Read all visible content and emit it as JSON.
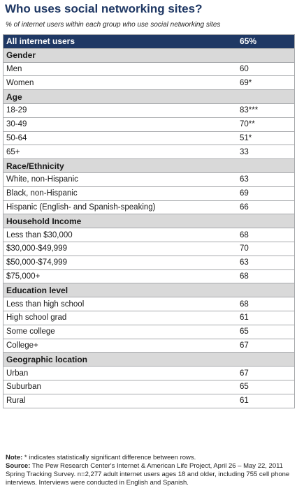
{
  "title": "Who uses social networking sites?",
  "subtitle": "% of internet users within each group who use social networking sites",
  "chart_data": {
    "type": "table",
    "title": "Who uses social networking sites?",
    "subtitle": "% of internet users within each group who use social networking sites",
    "total": {
      "label": "All internet users",
      "value": "65%"
    },
    "groups": [
      {
        "name": "Gender",
        "rows": [
          {
            "label": "Men",
            "value": "60"
          },
          {
            "label": "Women",
            "value": "69*"
          }
        ]
      },
      {
        "name": "Age",
        "rows": [
          {
            "label": "18-29",
            "value": "83***"
          },
          {
            "label": "30-49",
            "value": "70**"
          },
          {
            "label": "50-64",
            "value": "51*"
          },
          {
            "label": "65+",
            "value": "33"
          }
        ]
      },
      {
        "name": "Race/Ethnicity",
        "rows": [
          {
            "label": "White, non-Hispanic",
            "value": "63"
          },
          {
            "label": "Black, non-Hispanic",
            "value": "69"
          },
          {
            "label": "Hispanic (English- and Spanish-speaking)",
            "value": "66"
          }
        ]
      },
      {
        "name": "Household Income",
        "rows": [
          {
            "label": "Less than $30,000",
            "value": "68"
          },
          {
            "label": "$30,000-$49,999",
            "value": "70"
          },
          {
            "label": "$50,000-$74,999",
            "value": "63"
          },
          {
            "label": "$75,000+",
            "value": "68"
          }
        ]
      },
      {
        "name": "Education level",
        "rows": [
          {
            "label": "Less than high school",
            "value": "68"
          },
          {
            "label": "High school grad",
            "value": "61"
          },
          {
            "label": "Some college",
            "value": "65"
          },
          {
            "label": "College+",
            "value": "67"
          }
        ]
      },
      {
        "name": "Geographic location",
        "rows": [
          {
            "label": "Urban",
            "value": "67"
          },
          {
            "label": "Suburban",
            "value": "65"
          },
          {
            "label": "Rural",
            "value": "61"
          }
        ]
      }
    ]
  },
  "notes": {
    "note_label": "Note:",
    "note_text": " * indicates statistically significant difference between rows.",
    "source_label": "Source:",
    "source_text": " The Pew Research Center's Internet & American Life Project, April 26 – May 22, 2011 Spring Tracking Survey. n=2,277 adult internet users ages 18 and older, including 755 cell phone interviews. Interviews were conducted in English and Spanish."
  },
  "colors": {
    "header": "#1f3864",
    "group": "#d9d9d9",
    "title": "#1f3864"
  }
}
